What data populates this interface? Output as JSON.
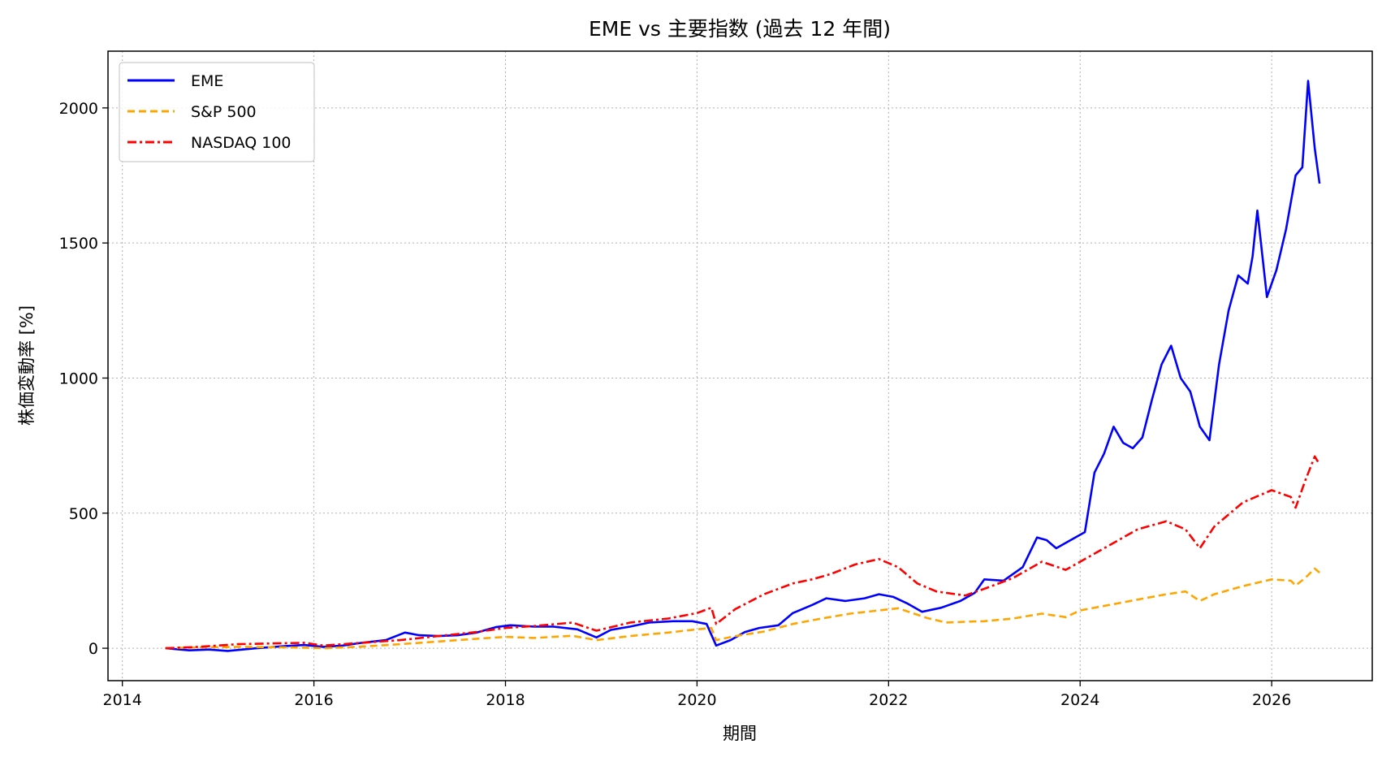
{
  "chart_data": {
    "type": "line",
    "title": "EME vs 主要指数 (過去 12 年間)",
    "xlabel": "期間",
    "ylabel": "株価変動率 [%]",
    "xlim": [
      2013.85,
      2027.05
    ],
    "ylim": [
      -120,
      2210
    ],
    "x_ticks": [
      2014,
      2016,
      2018,
      2020,
      2022,
      2024,
      2026
    ],
    "x_tick_labels": [
      "2014",
      "2016",
      "2018",
      "2020",
      "2022",
      "2024",
      "2026"
    ],
    "y_ticks": [
      0,
      500,
      1000,
      1500,
      2000
    ],
    "y_tick_labels": [
      "0",
      "500",
      "1000",
      "1500",
      "2000"
    ],
    "grid": true,
    "legend_position": "top-left",
    "series": [
      {
        "name": "EME",
        "color": "#0000ff",
        "style": "solid",
        "x": [
          2014.45,
          2014.7,
          2014.9,
          2015.1,
          2015.4,
          2015.7,
          2015.9,
          2016.1,
          2016.3,
          2016.5,
          2016.75,
          2016.95,
          2017.1,
          2017.3,
          2017.5,
          2017.7,
          2017.9,
          2018.05,
          2018.3,
          2018.5,
          2018.75,
          2018.95,
          2019.1,
          2019.3,
          2019.5,
          2019.75,
          2019.95,
          2020.1,
          2020.2,
          2020.35,
          2020.5,
          2020.65,
          2020.85,
          2021.0,
          2021.2,
          2021.35,
          2021.55,
          2021.75,
          2021.9,
          2022.05,
          2022.2,
          2022.35,
          2022.55,
          2022.75,
          2022.9,
          2023.0,
          2023.2,
          2023.4,
          2023.55,
          2023.65,
          2023.75,
          2023.85,
          2023.95,
          2024.05,
          2024.15,
          2024.25,
          2024.35,
          2024.45,
          2024.55,
          2024.65,
          2024.75,
          2024.85,
          2024.95,
          2025.05,
          2025.15,
          2025.25,
          2025.35,
          2025.45,
          2025.55,
          2025.65,
          2025.75,
          2025.8,
          2025.85,
          2025.95,
          2026.05,
          2026.15,
          2026.25,
          2026.32,
          2026.38,
          2026.45,
          2026.5
        ],
        "values": [
          0,
          -8,
          -5,
          -10,
          0,
          8,
          12,
          5,
          10,
          20,
          30,
          58,
          48,
          45,
          48,
          58,
          78,
          85,
          80,
          80,
          70,
          40,
          68,
          80,
          95,
          100,
          100,
          90,
          10,
          30,
          60,
          75,
          85,
          130,
          160,
          185,
          175,
          185,
          200,
          190,
          165,
          135,
          150,
          175,
          205,
          255,
          250,
          300,
          410,
          400,
          370,
          390,
          410,
          430,
          650,
          720,
          820,
          760,
          740,
          780,
          920,
          1050,
          1120,
          1000,
          950,
          820,
          770,
          1050,
          1250,
          1380,
          1350,
          1450,
          1620,
          1300,
          1400,
          1550,
          1750,
          1780,
          2100,
          1850,
          1720
        ]
      },
      {
        "name": "S&P 500",
        "color": "#ffa500",
        "style": "dashed",
        "x": [
          2014.45,
          2014.8,
          2015.2,
          2015.6,
          2015.9,
          2016.1,
          2016.5,
          2016.9,
          2017.3,
          2017.7,
          2018.0,
          2018.3,
          2018.7,
          2018.95,
          2019.3,
          2019.7,
          2020.0,
          2020.15,
          2020.2,
          2020.4,
          2020.7,
          2021.0,
          2021.3,
          2021.6,
          2021.9,
          2022.1,
          2022.4,
          2022.6,
          2022.8,
          2023.0,
          2023.3,
          2023.6,
          2023.85,
          2024.0,
          2024.3,
          2024.6,
          2024.9,
          2025.1,
          2025.25,
          2025.4,
          2025.7,
          2026.0,
          2026.2,
          2026.25,
          2026.35,
          2026.45,
          2026.5
        ],
        "values": [
          0,
          3,
          5,
          4,
          2,
          0,
          6,
          15,
          25,
          35,
          42,
          38,
          46,
          30,
          45,
          58,
          70,
          75,
          30,
          45,
          62,
          90,
          110,
          128,
          140,
          148,
          112,
          95,
          98,
          100,
          110,
          128,
          115,
          140,
          160,
          180,
          200,
          210,
          175,
          200,
          230,
          255,
          250,
          232,
          260,
          295,
          280
        ]
      },
      {
        "name": "NASDAQ 100",
        "color": "#ff0000",
        "style": "dashdot",
        "x": [
          2014.45,
          2014.8,
          2015.2,
          2015.6,
          2015.9,
          2016.1,
          2016.5,
          2016.9,
          2017.3,
          2017.7,
          2018.0,
          2018.3,
          2018.7,
          2018.95,
          2019.3,
          2019.7,
          2020.0,
          2020.15,
          2020.2,
          2020.4,
          2020.7,
          2021.0,
          2021.2,
          2021.4,
          2021.65,
          2021.9,
          2022.1,
          2022.3,
          2022.5,
          2022.8,
          2023.0,
          2023.3,
          2023.6,
          2023.85,
          2024.0,
          2024.3,
          2024.6,
          2024.9,
          2025.1,
          2025.25,
          2025.4,
          2025.7,
          2026.0,
          2026.2,
          2026.25,
          2026.35,
          2026.45,
          2026.5
        ],
        "values": [
          0,
          5,
          15,
          18,
          20,
          10,
          20,
          30,
          45,
          60,
          75,
          82,
          95,
          65,
          95,
          110,
          130,
          150,
          90,
          145,
          200,
          240,
          255,
          275,
          310,
          330,
          300,
          240,
          210,
          195,
          220,
          260,
          320,
          290,
          320,
          380,
          440,
          470,
          440,
          370,
          450,
          540,
          585,
          560,
          520,
          620,
          710,
          680
        ]
      }
    ]
  }
}
